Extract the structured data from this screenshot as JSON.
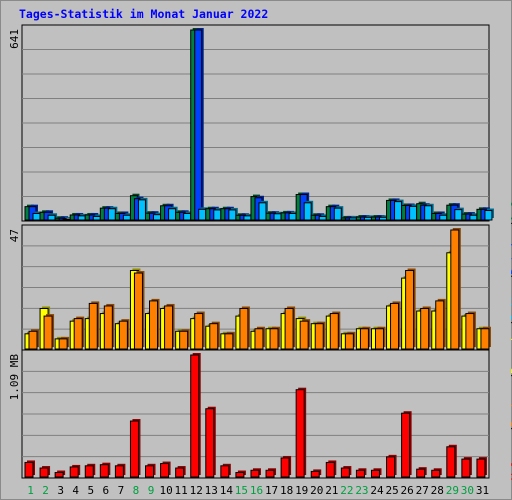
{
  "title": "Tages-Statistik im Monat Januar 2022",
  "colors": {
    "background": "#c0c0c0",
    "hits": "#008040",
    "files": "#0040ff",
    "pages": "#00c0ff",
    "visits": "#ffff00",
    "sites": "#ff8000",
    "kbytes": "#ff0000",
    "weekend_day": "#00a040",
    "weekday": "#000000",
    "separator": "#000000"
  },
  "legend": {
    "middle": [
      {
        "label": "Volumen",
        "color": "#ff0000"
      },
      {
        "label": "Rechner",
        "color": "#ff8000"
      },
      {
        "label": "Besuche",
        "color": "#ffff00"
      },
      {
        "label": "Seiten",
        "color": "#00c0ff"
      },
      {
        "label": "Dateien",
        "color": "#0040ff"
      },
      {
        "label": "Anfragen",
        "color": "#008040"
      }
    ],
    "separator": "/"
  },
  "chart_data": [
    {
      "type": "bar",
      "panel": "top",
      "y_max_label": "641",
      "ylim": [
        0,
        641
      ],
      "categories": [
        "1",
        "2",
        "3",
        "4",
        "5",
        "6",
        "7",
        "8",
        "9",
        "10",
        "11",
        "12",
        "13",
        "14",
        "15",
        "16",
        "17",
        "18",
        "19",
        "20",
        "21",
        "22",
        "23",
        "24",
        "25",
        "26",
        "27",
        "28",
        "29",
        "30",
        "31"
      ],
      "weekend_days": [
        "1",
        "2",
        "8",
        "9",
        "15",
        "16",
        "22",
        "23",
        "29",
        "30"
      ],
      "series": [
        {
          "name": "Anfragen",
          "color": "#008040",
          "values": [
            45,
            26,
            6,
            17,
            17,
            40,
            22,
            82,
            23,
            48,
            26,
            641,
            38,
            38,
            16,
            79,
            23,
            24,
            86,
            16,
            45,
            7,
            10,
            10,
            66,
            49,
            55,
            22,
            50,
            20,
            36
          ]
        },
        {
          "name": "Dateien",
          "color": "#0040ff",
          "values": [
            45,
            26,
            6,
            17,
            17,
            40,
            22,
            72,
            23,
            48,
            26,
            641,
            38,
            38,
            16,
            75,
            23,
            24,
            86,
            16,
            45,
            7,
            10,
            10,
            66,
            49,
            50,
            22,
            50,
            20,
            36
          ]
        },
        {
          "name": "Seiten",
          "color": "#00c0ff",
          "values": [
            22,
            16,
            3,
            14,
            12,
            38,
            16,
            68,
            18,
            38,
            22,
            36,
            34,
            34,
            14,
            58,
            21,
            22,
            58,
            12,
            40,
            7,
            9,
            9,
            62,
            46,
            48,
            16,
            35,
            16,
            32
          ]
        }
      ]
    },
    {
      "type": "bar",
      "panel": "middle",
      "y_max_label": "47",
      "ylim": [
        0,
        47
      ],
      "categories": [
        "1",
        "2",
        "3",
        "4",
        "5",
        "6",
        "7",
        "8",
        "9",
        "10",
        "11",
        "12",
        "13",
        "14",
        "15",
        "16",
        "17",
        "18",
        "19",
        "20",
        "21",
        "22",
        "23",
        "24",
        "25",
        "26",
        "27",
        "28",
        "29",
        "30",
        "31"
      ],
      "series": [
        {
          "name": "Besuche",
          "color": "#ffff00",
          "values": [
            6,
            16,
            4,
            11,
            12,
            14,
            10,
            31,
            14,
            16,
            7,
            12,
            9,
            6,
            13,
            7,
            8,
            14,
            12,
            10,
            13,
            6,
            8,
            8,
            17,
            28,
            15,
            15,
            38,
            13,
            8
          ]
        },
        {
          "name": "Rechner",
          "color": "#ff8000",
          "values": [
            7,
            13,
            4,
            12,
            18,
            17,
            11,
            30,
            19,
            17,
            7,
            14,
            10,
            6,
            16,
            8,
            8,
            16,
            11,
            10,
            14,
            6,
            8,
            8,
            18,
            31,
            16,
            19,
            47,
            14,
            8
          ]
        }
      ]
    },
    {
      "type": "bar",
      "panel": "bottom",
      "y_max_label": "1.09 MB",
      "ylim": [
        0,
        1.09
      ],
      "unit": "MB",
      "categories": [
        "1",
        "2",
        "3",
        "4",
        "5",
        "6",
        "7",
        "8",
        "9",
        "10",
        "11",
        "12",
        "13",
        "14",
        "15",
        "16",
        "17",
        "18",
        "19",
        "20",
        "21",
        "22",
        "23",
        "24",
        "25",
        "26",
        "27",
        "28",
        "29",
        "30",
        "31"
      ],
      "series": [
        {
          "name": "Volumen",
          "color": "#ff0000",
          "values": [
            0.13,
            0.08,
            0.04,
            0.09,
            0.1,
            0.11,
            0.1,
            0.5,
            0.1,
            0.12,
            0.08,
            1.09,
            0.61,
            0.1,
            0.04,
            0.06,
            0.06,
            0.17,
            0.78,
            0.05,
            0.13,
            0.08,
            0.06,
            0.06,
            0.18,
            0.57,
            0.07,
            0.06,
            0.27,
            0.16,
            0.16
          ]
        }
      ]
    }
  ]
}
